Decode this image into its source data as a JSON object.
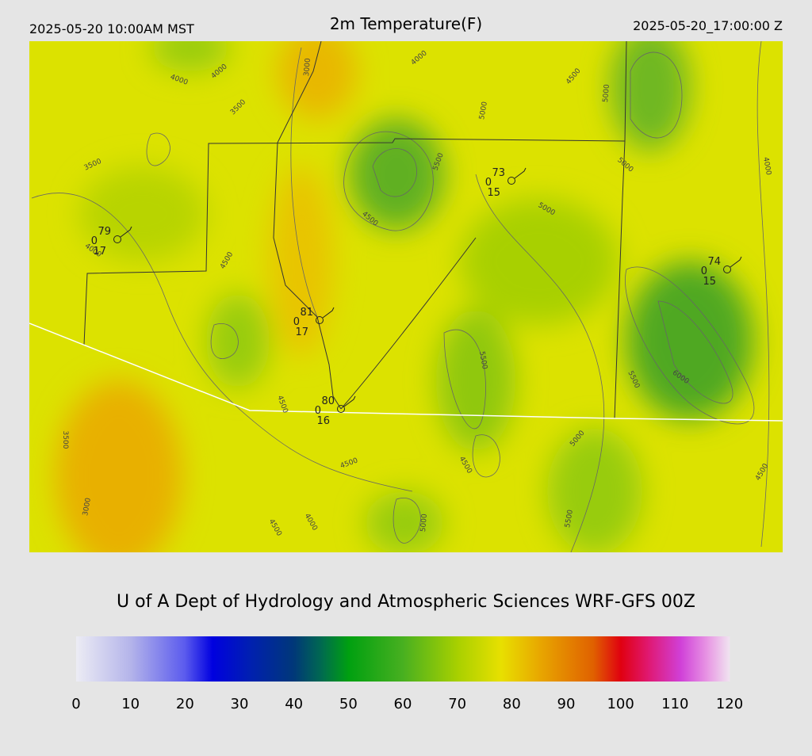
{
  "header": {
    "left": "2025-05-20 10:00AM MST",
    "title": "2m Temperature(F)",
    "right": "2025-05-20_17:00:00 Z"
  },
  "stations": [
    {
      "temp": 79,
      "dew": 0,
      "gust": 17
    },
    {
      "temp": 73,
      "dew": 0,
      "gust": 15
    },
    {
      "temp": 74,
      "dew": 0,
      "gust": 15
    },
    {
      "temp": 81,
      "dew": 0,
      "gust": 17
    },
    {
      "temp": 80,
      "dew": 0,
      "gust": 16
    }
  ],
  "contour_labels": [
    4000,
    4000,
    3500,
    3500,
    3000,
    4000,
    4500,
    5000,
    5000,
    5500,
    5000,
    5000,
    4500,
    4500,
    4000,
    5500,
    5500,
    6000,
    4500,
    3500,
    5000,
    4500,
    4500,
    3000,
    4000,
    4500,
    5000,
    5500,
    4500,
    4000
  ],
  "footer": {
    "credit": "U of A Dept of Hydrology and Atmospheric Sciences WRF-GFS 00Z"
  },
  "colorbar": {
    "lim": [
      0,
      120
    ],
    "ticks": [
      0,
      10,
      20,
      30,
      40,
      50,
      60,
      70,
      80,
      90,
      100,
      110,
      120
    ],
    "stops": [
      {
        "value": 0,
        "color": "#ececf4"
      },
      {
        "value": 10,
        "color": "#b4b4ea"
      },
      {
        "value": 20,
        "color": "#5a5aee"
      },
      {
        "value": 25,
        "color": "#0000e0"
      },
      {
        "value": 32,
        "color": "#0020b0"
      },
      {
        "value": 40,
        "color": "#003878"
      },
      {
        "value": 45,
        "color": "#006a50"
      },
      {
        "value": 50,
        "color": "#00a010"
      },
      {
        "value": 60,
        "color": "#48b020"
      },
      {
        "value": 70,
        "color": "#a8d000"
      },
      {
        "value": 78,
        "color": "#e8e000"
      },
      {
        "value": 85,
        "color": "#e8a800"
      },
      {
        "value": 95,
        "color": "#e06000"
      },
      {
        "value": 100,
        "color": "#e00010"
      },
      {
        "value": 105,
        "color": "#e01870"
      },
      {
        "value": 111,
        "color": "#d040d8"
      },
      {
        "value": 116,
        "color": "#e898e4"
      },
      {
        "value": 120,
        "color": "#f0e4f0"
      }
    ]
  }
}
